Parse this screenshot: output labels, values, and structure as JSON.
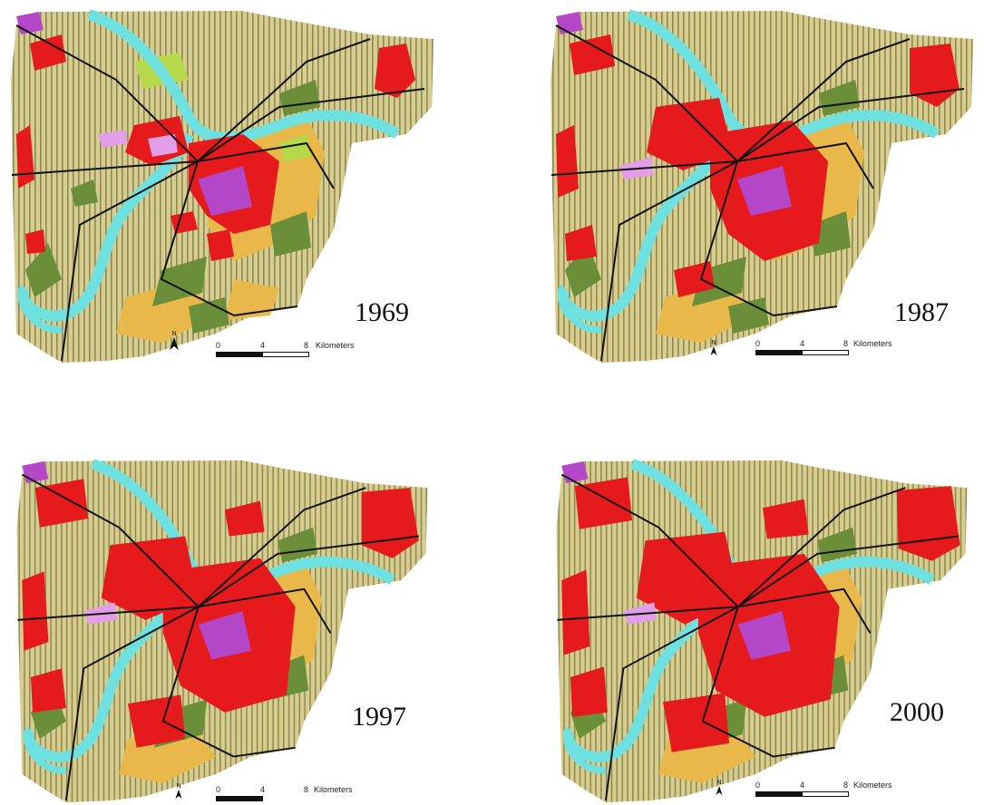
{
  "maps": [
    {
      "year": "1969"
    },
    {
      "year": "1987"
    },
    {
      "year": "1997"
    },
    {
      "year": "2000"
    }
  ],
  "scale_bar": {
    "tick_0": "0",
    "tick_1": "4",
    "tick_2": "8",
    "unit": "Kilometers"
  },
  "north_arrow": {
    "label": "N"
  },
  "colors": {
    "agriculture": "#d8cd8c",
    "agriculture_stripe": "#8a8a5a",
    "urban": "#e41a1c",
    "river": "#6fe0e0",
    "forest": "#6b8e3a",
    "grassland": "#e8b84a",
    "light_green": "#b5d94a",
    "industrial": "#b347c8",
    "institutional": "#e29fe8",
    "roads": "#111111"
  },
  "icons": {
    "north": "north-arrow-icon"
  }
}
